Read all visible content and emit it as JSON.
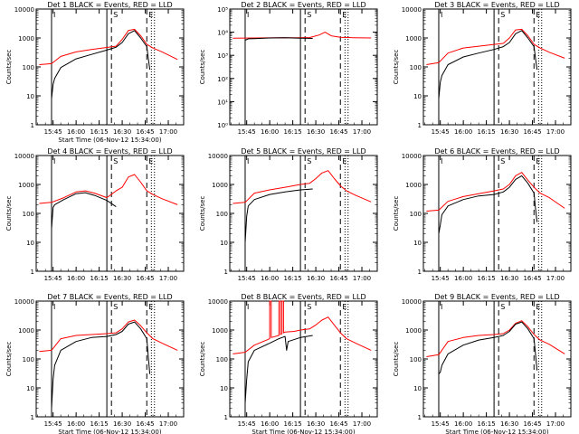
{
  "colors": {
    "events": "#000000",
    "lld": "#ff0000",
    "background": "#ffffff"
  },
  "chart_data": [
    {
      "type": "line",
      "title": "Det 1  BLACK = Events, RED = LLD",
      "ylabel": "Counts/sec",
      "xlabel": "Start Time (06-Nov-12 15:34:00)",
      "yscale": "log",
      "ylim": [
        1,
        10000
      ],
      "ytick_labels": [
        "1",
        "10",
        "100",
        "1000",
        "10000"
      ],
      "xtick_labels": [
        "15:45",
        "16:00",
        "16:15",
        "16:30",
        "16:45",
        "17:00"
      ],
      "markers": [
        "I",
        "S",
        "E"
      ],
      "series": [
        {
          "color": "red",
          "x": [
            "15:36",
            "15:44",
            "15:50",
            "16:00",
            "16:10",
            "16:20",
            "16:26",
            "16:30",
            "16:34",
            "16:38",
            "16:42",
            "16:46",
            "16:50",
            "16:56",
            "17:06"
          ],
          "y": [
            120,
            130,
            230,
            330,
            400,
            470,
            520,
            900,
            1800,
            2000,
            1200,
            600,
            450,
            330,
            180
          ]
        },
        {
          "color": "black",
          "x": [
            "15:44",
            "15:45",
            "15:46",
            "15:50",
            "16:00",
            "16:10",
            "16:20",
            "16:26",
            "16:30",
            "16:34",
            "16:38",
            "16:42",
            "16:46",
            "16:47",
            "16:48"
          ],
          "y": [
            8,
            25,
            40,
            95,
            190,
            270,
            380,
            480,
            700,
            1400,
            1800,
            1000,
            500,
            200,
            80
          ]
        }
      ]
    },
    {
      "type": "line",
      "title": "Det 2  BLACK = Events, RED = LLD",
      "ylabel": "Counts/sec",
      "xlabel": "",
      "yscale": "log",
      "ylim": [
        1,
        100000
      ],
      "ytick_labels": [
        "10⁰",
        "10¹",
        "10²",
        "10³",
        "10⁴",
        "10⁵"
      ],
      "xtick_labels": [
        "15:45",
        "16:00",
        "16:15",
        "16:30",
        "16:45",
        "17:00"
      ],
      "markers": [
        "I",
        "S",
        "E"
      ],
      "series": [
        {
          "color": "red",
          "x": [
            "15:36",
            "15:50",
            "16:05",
            "16:18",
            "16:26",
            "16:32",
            "16:36",
            "16:40",
            "16:46",
            "16:55",
            "17:06"
          ],
          "y": [
            5500,
            5600,
            5700,
            5800,
            5900,
            7500,
            10000,
            7000,
            6000,
            5800,
            5600
          ]
        },
        {
          "color": "black",
          "x": [
            "15:44",
            "15:46",
            "15:50",
            "16:00",
            "16:10",
            "16:20",
            "16:28"
          ],
          "y": [
            4500,
            5200,
            5300,
            5600,
            5800,
            5500,
            5400
          ]
        }
      ]
    },
    {
      "type": "line",
      "title": "Det 3  BLACK = Events, RED = LLD",
      "ylabel": "Counts/sec",
      "xlabel": "",
      "yscale": "log",
      "ylim": [
        1,
        10000
      ],
      "ytick_labels": [
        "1",
        "10",
        "100",
        "1000",
        "10000"
      ],
      "xtick_labels": [
        "15:45",
        "16:00",
        "16:15",
        "16:30",
        "16:45",
        "17:00"
      ],
      "markers": [
        "I",
        "S",
        "E"
      ],
      "series": [
        {
          "color": "red",
          "x": [
            "15:36",
            "15:44",
            "15:50",
            "16:00",
            "16:10",
            "16:20",
            "16:26",
            "16:30",
            "16:34",
            "16:38",
            "16:42",
            "16:46",
            "16:50",
            "16:56",
            "17:06"
          ],
          "y": [
            120,
            140,
            300,
            450,
            520,
            600,
            650,
            1000,
            1900,
            2000,
            1200,
            600,
            450,
            320,
            200
          ]
        },
        {
          "color": "black",
          "x": [
            "15:44",
            "15:45",
            "15:46",
            "15:50",
            "16:00",
            "16:10",
            "16:20",
            "16:26",
            "16:30",
            "16:34",
            "16:38",
            "16:42",
            "16:46",
            "16:47",
            "16:48"
          ],
          "y": [
            8,
            30,
            50,
            120,
            220,
            300,
            400,
            500,
            700,
            1400,
            1800,
            1000,
            500,
            200,
            80
          ]
        }
      ]
    },
    {
      "type": "line",
      "title": "Det 4  BLACK = Events, RED = LLD",
      "ylabel": "Counts/sec",
      "xlabel": "",
      "yscale": "log",
      "ylim": [
        1,
        10000
      ],
      "ytick_labels": [
        "1",
        "10",
        "100",
        "1000",
        "10000"
      ],
      "xtick_labels": [
        "15:45",
        "16:00",
        "16:15",
        "16:30",
        "16:45",
        "17:00"
      ],
      "markers": [
        "I",
        "S",
        "E"
      ],
      "series": [
        {
          "color": "red",
          "x": [
            "15:36",
            "15:44",
            "15:52",
            "16:00",
            "16:06",
            "16:12",
            "16:20",
            "16:26",
            "16:30",
            "16:34",
            "16:38",
            "16:42",
            "16:46",
            "16:50",
            "16:56",
            "17:06"
          ],
          "y": [
            220,
            240,
            350,
            550,
            600,
            500,
            350,
            600,
            800,
            1800,
            2200,
            1200,
            600,
            450,
            320,
            200
          ]
        },
        {
          "color": "black",
          "x": [
            "15:44",
            "15:45",
            "15:46",
            "15:52",
            "16:00",
            "16:06",
            "16:12",
            "16:20",
            "16:26"
          ],
          "y": [
            30,
            160,
            200,
            300,
            480,
            520,
            420,
            280,
            170
          ]
        }
      ]
    },
    {
      "type": "line",
      "title": "Det 5  BLACK = Events, RED = LLD",
      "ylabel": "Counts/sec",
      "xlabel": "",
      "yscale": "log",
      "ylim": [
        1,
        10000
      ],
      "ytick_labels": [
        "1",
        "10",
        "100",
        "1000",
        "10000"
      ],
      "xtick_labels": [
        "15:45",
        "16:00",
        "16:15",
        "16:30",
        "16:45",
        "17:00"
      ],
      "markers": [
        "I",
        "S",
        "E"
      ],
      "series": [
        {
          "color": "red",
          "x": [
            "15:36",
            "15:44",
            "15:50",
            "16:00",
            "16:10",
            "16:20",
            "16:26",
            "16:30",
            "16:34",
            "16:38",
            "16:42",
            "16:46",
            "16:50",
            "16:56",
            "17:06"
          ],
          "y": [
            220,
            240,
            500,
            650,
            800,
            1000,
            1100,
            1600,
            2500,
            3000,
            1600,
            900,
            600,
            420,
            250
          ]
        },
        {
          "color": "black",
          "x": [
            "15:44",
            "15:45",
            "15:46",
            "15:50",
            "16:00",
            "16:10",
            "16:20",
            "16:28"
          ],
          "y": [
            10,
            80,
            180,
            300,
            450,
            550,
            650,
            700
          ]
        }
      ]
    },
    {
      "type": "line",
      "title": "Det 6  BLACK = Events, RED = LLD",
      "ylabel": "Counts/sec",
      "xlabel": "",
      "yscale": "log",
      "ylim": [
        1,
        10000
      ],
      "ytick_labels": [
        "1",
        "10",
        "100",
        "1000",
        "10000"
      ],
      "xtick_labels": [
        "15:45",
        "16:00",
        "16:15",
        "16:30",
        "16:45",
        "17:00"
      ],
      "markers": [
        "I",
        "S",
        "E"
      ],
      "series": [
        {
          "color": "red",
          "x": [
            "15:36",
            "15:44",
            "15:50",
            "16:00",
            "16:10",
            "16:20",
            "16:26",
            "16:30",
            "16:34",
            "16:38",
            "16:42",
            "16:46",
            "16:50",
            "16:56",
            "17:06"
          ],
          "y": [
            120,
            130,
            260,
            380,
            480,
            600,
            700,
            1000,
            2000,
            2600,
            1400,
            800,
            500,
            350,
            150
          ]
        },
        {
          "color": "black",
          "x": [
            "15:44",
            "15:45",
            "15:46",
            "15:50",
            "16:00",
            "16:10",
            "16:20",
            "16:26",
            "16:30",
            "16:34",
            "16:38",
            "16:42",
            "16:46",
            "16:47",
            "16:48"
          ],
          "y": [
            20,
            40,
            90,
            180,
            300,
            400,
            450,
            550,
            800,
            1500,
            2000,
            1100,
            500,
            150,
            50
          ]
        }
      ]
    },
    {
      "type": "line",
      "title": "Det 7  BLACK = Events, RED = LLD",
      "ylabel": "Counts/sec",
      "xlabel": "Start Time (06-Nov-12 15:34:00)",
      "yscale": "log",
      "ylim": [
        1,
        10000
      ],
      "ytick_labels": [
        "1",
        "10",
        "100",
        "1000",
        "10000"
      ],
      "xtick_labels": [
        "15:45",
        "16:00",
        "16:15",
        "16:30",
        "16:45",
        "17:00"
      ],
      "markers": [
        "I",
        "S",
        "E"
      ],
      "series": [
        {
          "color": "red",
          "x": [
            "15:36",
            "15:44",
            "15:50",
            "16:00",
            "16:10",
            "16:20",
            "16:26",
            "16:30",
            "16:34",
            "16:38",
            "16:42",
            "16:46",
            "16:50",
            "16:56",
            "17:06"
          ],
          "y": [
            180,
            200,
            500,
            650,
            700,
            750,
            800,
            1100,
            1900,
            2200,
            1400,
            800,
            500,
            350,
            200
          ]
        },
        {
          "color": "black",
          "x": [
            "15:44",
            "15:45",
            "15:46",
            "15:50",
            "16:00",
            "16:10",
            "16:20",
            "16:26",
            "16:30",
            "16:34",
            "16:38",
            "16:42",
            "16:46",
            "16:47",
            "16:48"
          ],
          "y": [
            2,
            20,
            60,
            200,
            400,
            550,
            600,
            700,
            900,
            1600,
            1900,
            1100,
            500,
            120,
            30
          ]
        }
      ]
    },
    {
      "type": "line",
      "title": "Det 8  BLACK = Events, RED = LLD",
      "ylabel": "Counts/sec",
      "xlabel": "Start Time (06-Nov-12 15:34:00)",
      "yscale": "log",
      "ylim": [
        1,
        10000
      ],
      "ytick_labels": [
        "1",
        "10",
        "100",
        "1000",
        "10000"
      ],
      "xtick_labels": [
        "15:45",
        "16:00",
        "16:15",
        "16:30",
        "16:45",
        "17:00"
      ],
      "markers": [
        "I",
        "S",
        "E"
      ],
      "series": [
        {
          "color": "red",
          "x": [
            "15:36",
            "15:44",
            "15:50",
            "15:58",
            "16:00",
            "16:00",
            "16:01",
            "16:01",
            "16:06",
            "16:06",
            "16:07",
            "16:07",
            "16:08",
            "16:08",
            "16:09",
            "16:09",
            "16:10",
            "16:16",
            "16:20",
            "16:26",
            "16:30",
            "16:34",
            "16:38",
            "16:42",
            "16:46",
            "16:50",
            "16:56",
            "17:06"
          ],
          "y": [
            150,
            170,
            300,
            450,
            500,
            10000,
            10000,
            550,
            650,
            10000,
            10000,
            700,
            750,
            10000,
            10000,
            800,
            850,
            900,
            1000,
            1100,
            1500,
            2200,
            2800,
            1500,
            800,
            500,
            350,
            200
          ]
        },
        {
          "color": "black",
          "x": [
            "15:44",
            "15:45",
            "15:46",
            "15:50",
            "16:00",
            "16:06",
            "16:08",
            "16:10",
            "16:11",
            "16:12",
            "16:20",
            "16:28"
          ],
          "y": [
            3,
            20,
            80,
            200,
            350,
            500,
            550,
            600,
            200,
            400,
            550,
            650
          ]
        }
      ]
    },
    {
      "type": "line",
      "title": "Det 9  BLACK = Events, RED = LLD",
      "ylabel": "Counts/sec",
      "xlabel": "Start Time (06-Nov-12 15:34:00)",
      "yscale": "log",
      "ylim": [
        1,
        10000
      ],
      "ytick_labels": [
        "1",
        "10",
        "100",
        "1000",
        "10000"
      ],
      "xtick_labels": [
        "15:45",
        "16:00",
        "16:15",
        "16:30",
        "16:45",
        "17:00"
      ],
      "markers": [
        "I",
        "S",
        "E"
      ],
      "series": [
        {
          "color": "red",
          "x": [
            "15:36",
            "15:44",
            "15:50",
            "16:00",
            "16:10",
            "16:20",
            "16:26",
            "16:30",
            "16:34",
            "16:38",
            "16:42",
            "16:46",
            "16:50",
            "16:56",
            "17:06"
          ],
          "y": [
            120,
            140,
            400,
            550,
            650,
            700,
            750,
            1000,
            1700,
            2100,
            1300,
            700,
            450,
            320,
            150
          ]
        },
        {
          "color": "black",
          "x": [
            "15:44",
            "15:45",
            "15:46",
            "15:50",
            "16:00",
            "16:10",
            "16:20",
            "16:26",
            "16:30",
            "16:34",
            "16:38",
            "16:42",
            "16:46",
            "16:47",
            "16:48"
          ],
          "y": [
            30,
            35,
            60,
            150,
            300,
            450,
            550,
            650,
            900,
            1600,
            1900,
            1100,
            500,
            150,
            40
          ]
        }
      ]
    }
  ]
}
